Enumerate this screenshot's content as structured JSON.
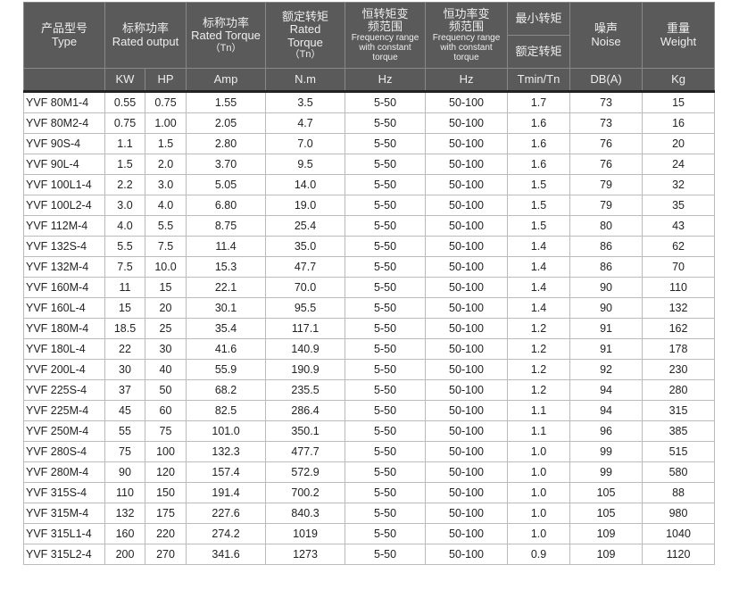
{
  "header": {
    "type_cn": "产品型号",
    "type_en": "Type",
    "output_cn": "标称功率",
    "output_en": "Rated output",
    "current_cn": "标称功率",
    "current_en": "Rated Torque",
    "current_sub": "（Tn）",
    "torque_cn": "额定转矩",
    "torque_en1": "Rated",
    "torque_en2": "Torque",
    "torque_sub": "（Tn）",
    "ct_cn1": "恒转矩变",
    "ct_cn2": "频范围",
    "ct_en": "Frequency range with constant torque",
    "cp_cn1": "恒功率变",
    "cp_cn2": "频范围",
    "cp_en": "Frequency range with constant torque",
    "min_cn1": "最小转矩",
    "min_cn2": "额定转矩",
    "noise_cn": "噪声",
    "noise_en": "Noise",
    "weight_cn": "重量",
    "weight_en": "Weight",
    "units": [
      "KW",
      "HP",
      "Amp",
      "N.m",
      "Hz",
      "Hz",
      "Tmin/Tn",
      "DB(A)",
      "Kg"
    ]
  },
  "rows": [
    [
      "YVF 80M1-4",
      "0.55",
      "0.75",
      "1.55",
      "3.5",
      "5-50",
      "50-100",
      "1.7",
      "73",
      "15"
    ],
    [
      "YVF 80M2-4",
      "0.75",
      "1.00",
      "2.05",
      "4.7",
      "5-50",
      "50-100",
      "1.6",
      "73",
      "16"
    ],
    [
      "YVF 90S-4",
      "1.1",
      "1.5",
      "2.80",
      "7.0",
      "5-50",
      "50-100",
      "1.6",
      "76",
      "20"
    ],
    [
      "YVF 90L-4",
      "1.5",
      "2.0",
      "3.70",
      "9.5",
      "5-50",
      "50-100",
      "1.6",
      "76",
      "24"
    ],
    [
      "YVF 100L1-4",
      "2.2",
      "3.0",
      "5.05",
      "14.0",
      "5-50",
      "50-100",
      "1.5",
      "79",
      "32"
    ],
    [
      "YVF 100L2-4",
      "3.0",
      "4.0",
      "6.80",
      "19.0",
      "5-50",
      "50-100",
      "1.5",
      "79",
      "35"
    ],
    [
      "YVF 112M-4",
      "4.0",
      "5.5",
      "8.75",
      "25.4",
      "5-50",
      "50-100",
      "1.5",
      "80",
      "43"
    ],
    [
      "YVF 132S-4",
      "5.5",
      "7.5",
      "11.4",
      "35.0",
      "5-50",
      "50-100",
      "1.4",
      "86",
      "62"
    ],
    [
      "YVF 132M-4",
      "7.5",
      "10.0",
      "15.3",
      "47.7",
      "5-50",
      "50-100",
      "1.4",
      "86",
      "70"
    ],
    [
      "YVF 160M-4",
      "11",
      "15",
      "22.1",
      "70.0",
      "5-50",
      "50-100",
      "1.4",
      "90",
      "110"
    ],
    [
      "YVF 160L-4",
      "15",
      "20",
      "30.1",
      "95.5",
      "5-50",
      "50-100",
      "1.4",
      "90",
      "132"
    ],
    [
      "YVF 180M-4",
      "18.5",
      "25",
      "35.4",
      "117.1",
      "5-50",
      "50-100",
      "1.2",
      "91",
      "162"
    ],
    [
      "YVF 180L-4",
      "22",
      "30",
      "41.6",
      "140.9",
      "5-50",
      "50-100",
      "1.2",
      "91",
      "178"
    ],
    [
      "YVF 200L-4",
      "30",
      "40",
      "55.9",
      "190.9",
      "5-50",
      "50-100",
      "1.2",
      "92",
      "230"
    ],
    [
      "YVF 225S-4",
      "37",
      "50",
      "68.2",
      "235.5",
      "5-50",
      "50-100",
      "1.2",
      "94",
      "280"
    ],
    [
      "YVF 225M-4",
      "45",
      "60",
      "82.5",
      "286.4",
      "5-50",
      "50-100",
      "1.1",
      "94",
      "315"
    ],
    [
      "YVF 250M-4",
      "55",
      "75",
      "101.0",
      "350.1",
      "5-50",
      "50-100",
      "1.1",
      "96",
      "385"
    ],
    [
      "YVF 280S-4",
      "75",
      "100",
      "132.3",
      "477.7",
      "5-50",
      "50-100",
      "1.0",
      "99",
      "515"
    ],
    [
      "YVF 280M-4",
      "90",
      "120",
      "157.4",
      "572.9",
      "5-50",
      "50-100",
      "1.0",
      "99",
      "580"
    ],
    [
      "YVF 315S-4",
      "110",
      "150",
      "191.4",
      "700.2",
      "5-50",
      "50-100",
      "1.0",
      "105",
      "88"
    ],
    [
      "YVF 315M-4",
      "132",
      "175",
      "227.6",
      "840.3",
      "5-50",
      "50-100",
      "1.0",
      "105",
      "980"
    ],
    [
      "YVF 315L1-4",
      "160",
      "220",
      "274.2",
      "1019",
      "5-50",
      "50-100",
      "1.0",
      "109",
      "1040"
    ],
    [
      "YVF 315L2-4",
      "200",
      "270",
      "341.6",
      "1273",
      "5-50",
      "50-100",
      "0.9",
      "109",
      "1120"
    ]
  ]
}
